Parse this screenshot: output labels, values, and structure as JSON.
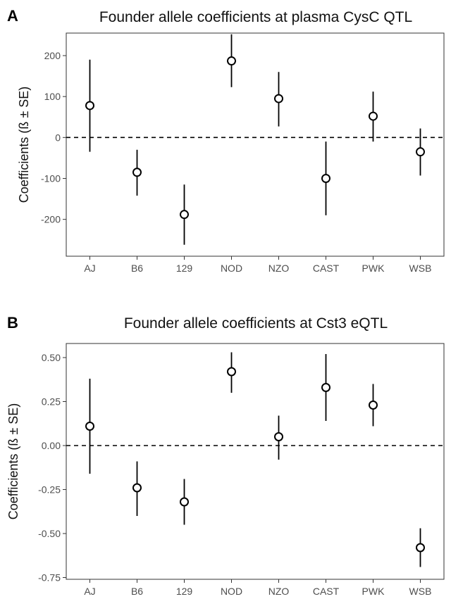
{
  "chart_data": [
    {
      "panel_letter": "A",
      "type": "scatter",
      "title": "Founder allele coefficients at plasma CysC QTL",
      "ylabel": "Coefficients (ß ± SE)",
      "xlabel": "",
      "ylim": [
        -290,
        255
      ],
      "y_ticks": [
        200,
        100,
        0,
        -100,
        -200
      ],
      "y_tick_labels": [
        "200",
        "100",
        "0",
        "-100",
        "-200"
      ],
      "categories": [
        "AJ",
        "B6",
        "129",
        "NOD",
        "NZO",
        "CAST",
        "PWK",
        "WSB"
      ],
      "values": [
        78,
        -85,
        -188,
        187,
        95,
        -100,
        52,
        -35
      ],
      "lower": [
        -35,
        -142,
        -262,
        123,
        27,
        -190,
        -10,
        -93
      ],
      "upper": [
        190,
        -30,
        -115,
        252,
        160,
        -10,
        112,
        22
      ],
      "reference_line": 0,
      "grid": false
    },
    {
      "panel_letter": "B",
      "type": "scatter",
      "title": "Founder allele coefficients at Cst3 eQTL",
      "ylabel": "Coefficients (ß ± SE)",
      "xlabel": "",
      "ylim": [
        -0.76,
        0.58
      ],
      "y_ticks": [
        0.5,
        0.25,
        0,
        -0.25,
        -0.5,
        -0.75
      ],
      "y_tick_labels": [
        "0.50",
        "0.25",
        "0.00",
        "-0.25",
        "-0.50",
        "-0.75"
      ],
      "categories": [
        "AJ",
        "B6",
        "129",
        "NOD",
        "NZO",
        "CAST",
        "PWK",
        "WSB"
      ],
      "values": [
        0.11,
        -0.24,
        -0.32,
        0.42,
        0.05,
        0.33,
        0.23,
        -0.58
      ],
      "lower": [
        -0.16,
        -0.4,
        -0.45,
        0.3,
        -0.08,
        0.14,
        0.11,
        -0.69
      ],
      "upper": [
        0.38,
        -0.09,
        -0.19,
        0.53,
        0.17,
        0.52,
        0.35,
        -0.47
      ],
      "reference_line": 0,
      "grid": false
    }
  ]
}
